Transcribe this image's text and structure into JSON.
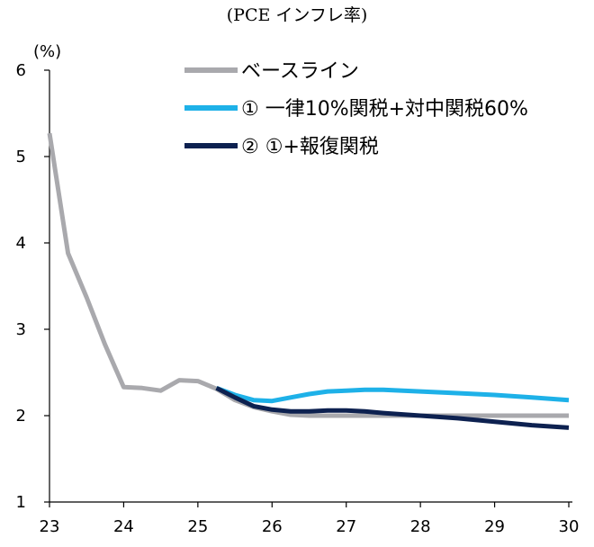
{
  "chart_data": {
    "type": "line",
    "title": "(PCE インフレ率)",
    "ylabel": "(%)",
    "xlabel": "",
    "xlim": [
      23,
      30
    ],
    "ylim": [
      1,
      6
    ],
    "x_ticks": [
      23,
      24,
      25,
      26,
      27,
      28,
      29,
      30
    ],
    "x_tick_labels": [
      "23",
      "24",
      "25",
      "26",
      "27",
      "28",
      "29",
      "30"
    ],
    "y_ticks": [
      1,
      2,
      3,
      4,
      5,
      6
    ],
    "y_tick_labels": [
      "1",
      "2",
      "3",
      "4",
      "5",
      "6"
    ],
    "legend_position": "top-right",
    "series": [
      {
        "name": "ベースライン",
        "color": "#a9a9ad",
        "x": [
          23.0,
          23.25,
          23.5,
          23.75,
          24.0,
          24.25,
          24.5,
          24.75,
          25.0,
          25.25,
          25.5,
          25.75,
          26.0,
          26.25,
          26.5,
          26.75,
          27.0,
          27.5,
          28.0,
          28.5,
          29.0,
          29.5,
          30.0
        ],
        "values": [
          5.27,
          3.88,
          3.37,
          2.82,
          2.33,
          2.32,
          2.29,
          2.41,
          2.4,
          2.31,
          2.18,
          2.1,
          2.05,
          2.01,
          2.0,
          2.0,
          2.0,
          2.0,
          2.0,
          2.0,
          2.0,
          2.0,
          2.0
        ]
      },
      {
        "name": "① 一律10%関税+対中関税60%",
        "color": "#1eb1e8",
        "x": [
          25.25,
          25.5,
          25.75,
          26.0,
          26.25,
          26.5,
          26.75,
          27.0,
          27.25,
          27.5,
          28.0,
          28.5,
          29.0,
          29.5,
          30.0
        ],
        "values": [
          2.32,
          2.24,
          2.18,
          2.17,
          2.21,
          2.25,
          2.28,
          2.29,
          2.3,
          2.3,
          2.28,
          2.26,
          2.24,
          2.21,
          2.18
        ]
      },
      {
        "name": "② ①+報復関税",
        "color": "#0d2150",
        "x": [
          25.25,
          25.5,
          25.75,
          26.0,
          26.25,
          26.5,
          26.75,
          27.0,
          27.25,
          27.5,
          28.0,
          28.5,
          29.0,
          29.5,
          30.0
        ],
        "values": [
          2.32,
          2.21,
          2.11,
          2.07,
          2.05,
          2.05,
          2.06,
          2.06,
          2.05,
          2.03,
          2.0,
          1.97,
          1.93,
          1.89,
          1.86
        ]
      }
    ]
  }
}
